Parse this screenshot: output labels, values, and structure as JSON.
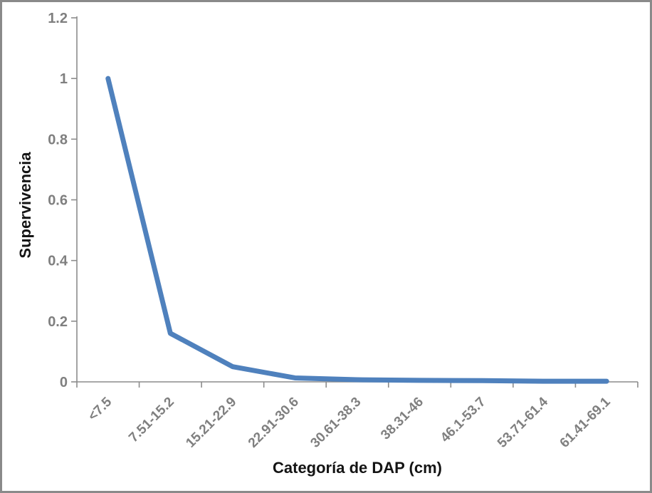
{
  "window": {
    "background_color": "#ffffff",
    "border_color": "#8a8a8a"
  },
  "chart_data": {
    "type": "line",
    "title": "",
    "categories": [
      "<7.5",
      "7.51-15.2",
      "15.21-22.9",
      "22.91-30.6",
      "30.61-38.3",
      "38.31-46",
      "46.1-53.7",
      "53.71-61.4",
      "61.41-69.1"
    ],
    "values": [
      1.0,
      0.16,
      0.05,
      0.013,
      0.007,
      0.005,
      0.004,
      0.002,
      0.002
    ],
    "xlabel": "Categoría de DAP (cm)",
    "ylabel": "Supervivencia",
    "ylim": [
      0,
      1.2
    ],
    "yticks": [
      0,
      0.2,
      0.4,
      0.6,
      0.8,
      1,
      1.2
    ],
    "ytick_labels": [
      "0",
      "0.2",
      "0.4",
      "0.6",
      "0.8",
      "1",
      "1.2"
    ],
    "grid": false,
    "legend": "none",
    "x_label_rotation_deg": -45,
    "line_color": "#4F81BD",
    "axis_color": "#8c8c8c",
    "tick_label_color": "#7f7f7f",
    "axis_title_color": "#141414"
  }
}
